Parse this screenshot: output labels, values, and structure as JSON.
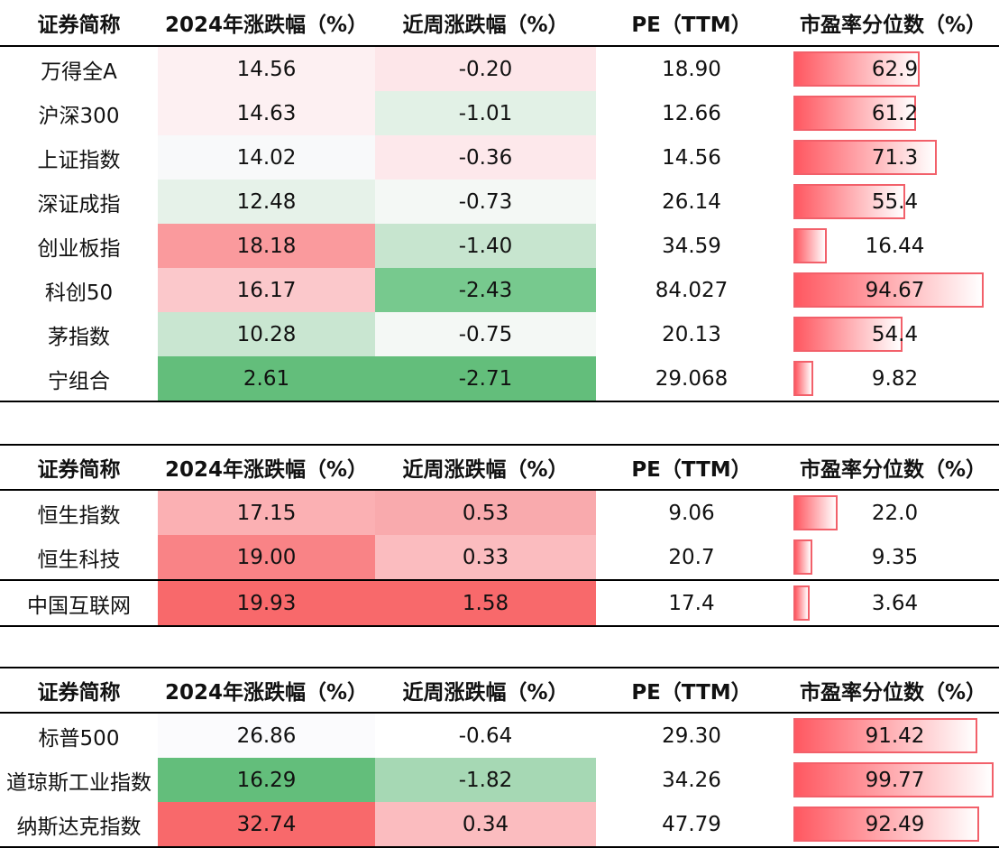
{
  "headers": [
    "证券简称",
    "2024年涨跌幅（%）",
    "近周涨跌幅（%）",
    "PE（TTM）",
    "市盈率分位数（%）"
  ],
  "tables": [
    {
      "rows": [
        {
          "name": "万得全A",
          "ytd": "14.56",
          "week": "-0.20",
          "pe": "18.90",
          "pct": "62.9",
          "pct_value": 62.9,
          "ytd_bg": "#fdf0f2",
          "week_bg": "#fde6e9"
        },
        {
          "name": "沪深300",
          "ytd": "14.63",
          "week": "-1.01",
          "pe": "12.66",
          "pct": "61.2",
          "pct_value": 61.2,
          "ytd_bg": "#fdf0f2",
          "week_bg": "#e2f1e6"
        },
        {
          "name": "上证指数",
          "ytd": "14.02",
          "week": "-0.36",
          "pe": "14.56",
          "pct": "71.3",
          "pct_value": 71.3,
          "ytd_bg": "#f8f9fa",
          "week_bg": "#fde8eb"
        },
        {
          "name": "深证成指",
          "ytd": "12.48",
          "week": "-0.73",
          "pe": "26.14",
          "pct": "55.4",
          "pct_value": 55.4,
          "ytd_bg": "#e6f2e9",
          "week_bg": "#f4f8f5"
        },
        {
          "name": "创业板指",
          "ytd": "18.18",
          "week": "-1.40",
          "pe": "34.59",
          "pct": "16.44",
          "pct_value": 16.44,
          "ytd_bg": "#fa9a9d",
          "week_bg": "#c7e5cf"
        },
        {
          "name": "科创50",
          "ytd": "16.17",
          "week": "-2.43",
          "pe": "84.027",
          "pct": "94.67",
          "pct_value": 94.67,
          "ytd_bg": "#fbc8cb",
          "week_bg": "#77c98e"
        },
        {
          "name": "茅指数",
          "ytd": "10.28",
          "week": "-0.75",
          "pe": "20.13",
          "pct": "54.4",
          "pct_value": 54.4,
          "ytd_bg": "#c9e6d1",
          "week_bg": "#f4f8f5"
        },
        {
          "name": "宁组合",
          "ytd": "2.61",
          "week": "-2.71",
          "pe": "29.068",
          "pct": "9.82",
          "pct_value": 9.82,
          "ytd_bg": "#63be7b",
          "week_bg": "#63be7b"
        }
      ]
    },
    {
      "rows": [
        {
          "name": "恒生指数",
          "ytd": "17.15",
          "week": "0.53",
          "pe": "9.06",
          "pct": "22.0",
          "pct_value": 22.0,
          "ytd_bg": "#fbb0b3",
          "week_bg": "#f9aaad"
        },
        {
          "name": "恒生科技",
          "ytd": "19.00",
          "week": "0.33",
          "pe": "20.7",
          "pct": "9.35",
          "pct_value": 9.35,
          "ytd_bg": "#f98386",
          "week_bg": "#fbbcbf"
        },
        {
          "name": "中国互联网",
          "ytd": "19.93",
          "week": "1.58",
          "pe": "17.4",
          "pct": "3.64",
          "pct_value": 3.64,
          "ytd_bg": "#f8696b",
          "week_bg": "#f8696b"
        }
      ]
    },
    {
      "rows": [
        {
          "name": "标普500",
          "ytd": "26.86",
          "week": "-0.64",
          "pe": "29.30",
          "pct": "91.42",
          "pct_value": 91.42,
          "ytd_bg": "#fbfbfd",
          "week_bg": "#ffffff"
        },
        {
          "name": "道琼斯工业指数",
          "ytd": "16.29",
          "week": "-1.82",
          "pe": "34.26",
          "pct": "99.77",
          "pct_value": 99.77,
          "ytd_bg": "#63be7b",
          "week_bg": "#a6d8b4"
        },
        {
          "name": "纳斯达克指数",
          "ytd": "32.74",
          "week": "0.34",
          "pe": "47.79",
          "pct": "92.49",
          "pct_value": 92.49,
          "ytd_bg": "#f8696b",
          "week_bg": "#fbbcbf"
        }
      ]
    }
  ]
}
